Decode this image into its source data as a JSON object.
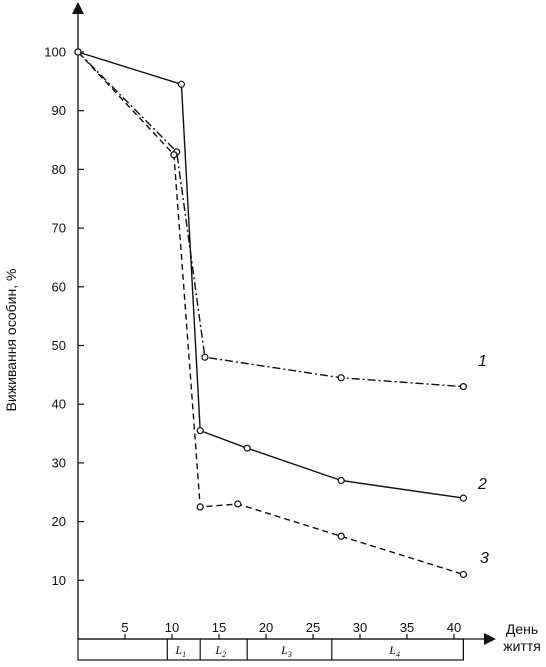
{
  "chart_data": {
    "type": "line",
    "title": "",
    "xlabel": "День життя",
    "ylabel": "Виживання особин, %",
    "xlim": [
      0,
      42
    ],
    "ylim": [
      0,
      107
    ],
    "x_ticks": [
      5,
      10,
      15,
      20,
      25,
      30,
      35,
      40
    ],
    "y_ticks": [
      10,
      20,
      30,
      40,
      50,
      60,
      70,
      80,
      90,
      100
    ],
    "grid": false,
    "legend": "none",
    "series": [
      {
        "name": "1",
        "line_style": "dash-dot",
        "marker": "open-circle",
        "color": "#111111",
        "points": [
          [
            0,
            100
          ],
          [
            10.5,
            83
          ],
          [
            13.5,
            48
          ],
          [
            28,
            44.5
          ],
          [
            41,
            43
          ]
        ]
      },
      {
        "name": "2",
        "line_style": "solid",
        "marker": "open-circle",
        "color": "#111111",
        "points": [
          [
            0,
            100
          ],
          [
            11,
            94.5
          ],
          [
            13,
            35.5
          ],
          [
            18,
            32.5
          ],
          [
            28,
            27
          ],
          [
            41,
            24
          ]
        ]
      },
      {
        "name": "3",
        "line_style": "dashed",
        "marker": "open-circle",
        "color": "#111111",
        "points": [
          [
            0,
            100
          ],
          [
            10.2,
            82.5
          ],
          [
            13,
            22.5
          ],
          [
            17,
            23
          ],
          [
            28,
            17.5
          ],
          [
            41,
            11
          ]
        ]
      }
    ],
    "stages": [
      {
        "label": "L",
        "sub": "1",
        "start": 9.5,
        "end": 13
      },
      {
        "label": "L",
        "sub": "2",
        "start": 13,
        "end": 18
      },
      {
        "label": "L",
        "sub": "3",
        "start": 18,
        "end": 27
      },
      {
        "label": "L",
        "sub": "4",
        "start": 27,
        "end": 41
      }
    ]
  }
}
